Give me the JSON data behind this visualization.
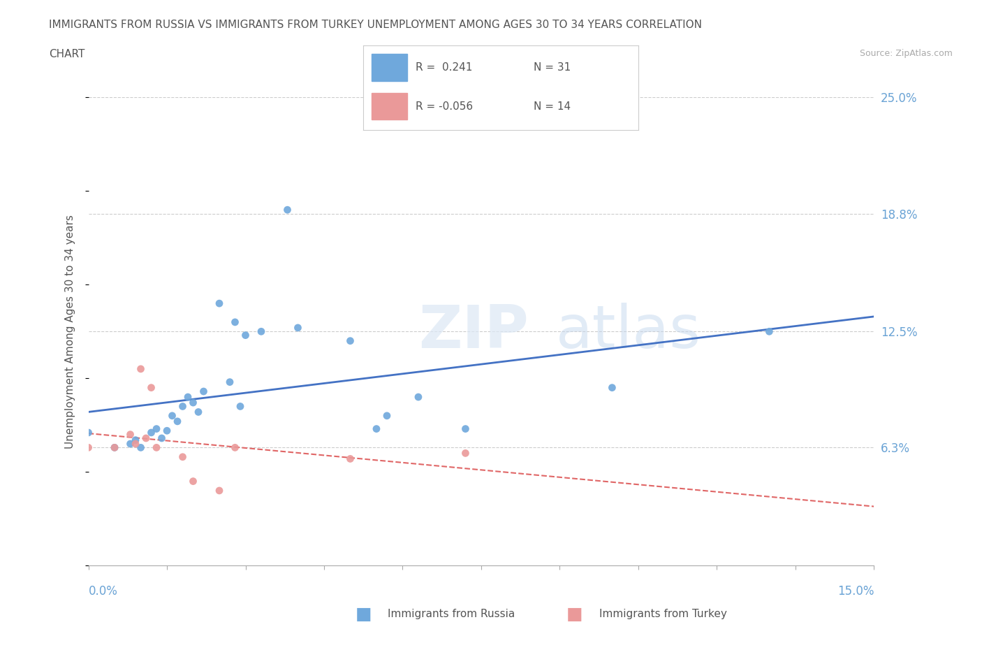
{
  "title_line1": "IMMIGRANTS FROM RUSSIA VS IMMIGRANTS FROM TURKEY UNEMPLOYMENT AMONG AGES 30 TO 34 YEARS CORRELATION",
  "title_line2": "CHART",
  "source": "Source: ZipAtlas.com",
  "ylabel": "Unemployment Among Ages 30 to 34 years",
  "xlim": [
    0.0,
    0.15
  ],
  "ylim": [
    0.0,
    0.25
  ],
  "ytick_labels": [
    "6.3%",
    "12.5%",
    "18.8%",
    "25.0%"
  ],
  "ytick_values": [
    0.063,
    0.125,
    0.188,
    0.25
  ],
  "russia_R": 0.241,
  "russia_N": 31,
  "turkey_R": -0.056,
  "turkey_N": 14,
  "russia_color": "#6fa8dc",
  "turkey_color": "#ea9999",
  "russia_line_color": "#4472c4",
  "turkey_line_color": "#e06666",
  "russia_x": [
    0.0,
    0.005,
    0.008,
    0.009,
    0.01,
    0.012,
    0.013,
    0.014,
    0.015,
    0.016,
    0.017,
    0.018,
    0.019,
    0.02,
    0.021,
    0.022,
    0.025,
    0.027,
    0.028,
    0.029,
    0.03,
    0.033,
    0.038,
    0.04,
    0.05,
    0.055,
    0.057,
    0.063,
    0.072,
    0.1,
    0.13
  ],
  "russia_y": [
    0.071,
    0.063,
    0.065,
    0.067,
    0.063,
    0.071,
    0.073,
    0.068,
    0.072,
    0.08,
    0.077,
    0.085,
    0.09,
    0.087,
    0.082,
    0.093,
    0.14,
    0.098,
    0.13,
    0.085,
    0.123,
    0.125,
    0.19,
    0.127,
    0.12,
    0.073,
    0.08,
    0.09,
    0.073,
    0.095,
    0.125
  ],
  "turkey_x": [
    0.0,
    0.005,
    0.008,
    0.009,
    0.01,
    0.011,
    0.012,
    0.013,
    0.018,
    0.02,
    0.025,
    0.028,
    0.05,
    0.072
  ],
  "turkey_y": [
    0.063,
    0.063,
    0.07,
    0.065,
    0.105,
    0.068,
    0.095,
    0.063,
    0.058,
    0.045,
    0.04,
    0.063,
    0.057,
    0.06
  ],
  "background_color": "#ffffff",
  "grid_color": "#cccccc"
}
